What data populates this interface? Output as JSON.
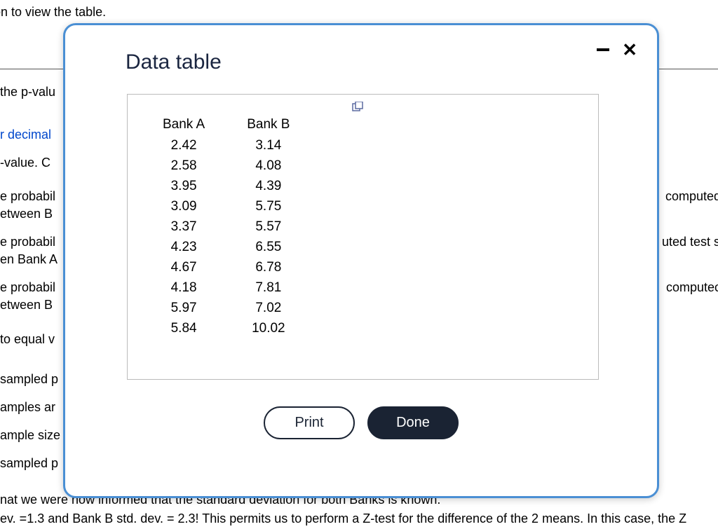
{
  "background": {
    "line_top": "icon to view the table.",
    "line_pvalu": "the p-valu",
    "line_decimal": "r decimal",
    "line_value_c": "-value. C",
    "line_prob1": "e probabil",
    "line_betweenB1": "etween B",
    "line_prob2": "e probabil",
    "line_enBankA": "en Bank A",
    "line_prob3": "e probabil",
    "line_betweenB2": "etween B",
    "line_toequal": "to equal v",
    "line_sampledp1": "sampled p",
    "line_amplesar": "amples ar",
    "line_amplesize": "ample size",
    "line_sampledp2": "sampled p",
    "line_bottom1": "nat we were now informed  that the standard deviation for both Banks is known.",
    "line_bottom2": "ev. =1.3  and Bank B std. dev. = 2.3!   This permits us to perform a Z-test for the difference of the 2 means.  In this case, the Z",
    "right_computed": "computed",
    "right_utedtest": "uted test st",
    "right_computec": " computec"
  },
  "modal": {
    "title": "Data table",
    "table": {
      "columns": [
        "Bank A",
        "Bank B"
      ],
      "rows": [
        [
          "2.42",
          "3.14"
        ],
        [
          "2.58",
          "4.08"
        ],
        [
          "3.95",
          "4.39"
        ],
        [
          "3.09",
          "5.75"
        ],
        [
          "3.37",
          "5.57"
        ],
        [
          "4.23",
          "6.55"
        ],
        [
          "4.67",
          "6.78"
        ],
        [
          "4.18",
          "7.81"
        ],
        [
          "5.97",
          "7.02"
        ],
        [
          "5.84",
          "10.02"
        ]
      ]
    },
    "buttons": {
      "print": "Print",
      "done": "Done"
    }
  },
  "colors": {
    "modal_border": "#4a8fd4",
    "link": "#0047cc",
    "dark_button": "#1a2333",
    "title_color": "#1a2540"
  }
}
